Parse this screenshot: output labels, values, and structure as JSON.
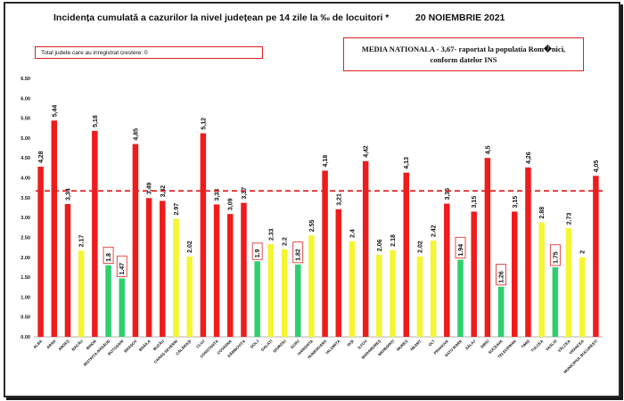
{
  "header": {
    "title": "Incidența cumulată a cazurilor la nivel județean pe 14 zile la ‰ de locuitori *",
    "date": "20 NOIEMBRIE 2021",
    "note_left": "Total judete care au inregistrat crestere: 0",
    "note_right_line1": "MEDIA NATIONALA - 3,67-  raportat la populatia Rom�nici,",
    "note_right_line2": "conform datelor INS"
  },
  "chart_data": {
    "type": "bar",
    "title": "Incidența cumulată a cazurilor la nivel județean pe 14 zile la ‰ de locuitori *",
    "xlabel": "",
    "ylabel": "",
    "ylim": [
      0,
      6.5
    ],
    "yticks": [
      "0.00",
      "0.50",
      "1.00",
      "1.50",
      "2.00",
      "2.50",
      "3.00",
      "3.50",
      "4.00",
      "4.50",
      "5.00",
      "5.50",
      "6.00",
      "6.50"
    ],
    "grid": false,
    "reference_line": 3.67,
    "categories": [
      "ALBA",
      "ARAD",
      "ARGEȘ",
      "BACĂU",
      "BIHOR",
      "BISTRIȚA-NĂSĂUD",
      "BOTOȘANI",
      "BRAȘOV",
      "BRĂILA",
      "BUZĂU",
      "CARAȘ-SEVERIN",
      "CĂLĂRAȘI",
      "CLUJ",
      "CONSTANȚA",
      "COVASNA",
      "DÂMBOVIȚA",
      "DOLJ",
      "GALAȚI",
      "GIURGIU",
      "GORJ",
      "HARGHITA",
      "HUNEDOARA",
      "IALOMIȚA",
      "IAȘI",
      "ILFOV",
      "MARAMUREȘ",
      "MEHEDINȚI",
      "MUREȘ",
      "NEAMȚ",
      "OLT",
      "PRAHOVA",
      "SATU MARE",
      "SĂLAJ",
      "SIBIU",
      "SUCEAVA",
      "TELEORMAN",
      "TIMIȘ",
      "TULCEA",
      "VASLUI",
      "VÂLCEA",
      "VRANCEA",
      "MUNICIPIUL BUCUREȘTI"
    ],
    "values": [
      4.28,
      5.44,
      3.34,
      2.17,
      5.18,
      1.8,
      1.47,
      4.85,
      3.49,
      3.42,
      2.97,
      2.02,
      5.12,
      3.33,
      3.09,
      3.37,
      1.9,
      2.33,
      2.2,
      1.82,
      2.55,
      4.18,
      3.21,
      2.4,
      4.42,
      2.06,
      2.18,
      4.13,
      2.02,
      2.42,
      3.35,
      1.94,
      3.15,
      4.5,
      1.26,
      3.15,
      4.26,
      2.88,
      1.75,
      2.73,
      2,
      4.05
    ],
    "value_labels": [
      "4,28",
      "5,44",
      "3,34",
      "2.17",
      "5,18",
      "1.8",
      "1.47",
      "4,85",
      "3,49",
      "3,42",
      "2.97",
      "2.02",
      "5,12",
      "3,33",
      "3,09",
      "3,37",
      "1.9",
      "2.33",
      "2.2",
      "1.82",
      "2.55",
      "4,18",
      "3,21",
      "2.4",
      "4,42",
      "2.06",
      "2.18",
      "4,13",
      "2.02",
      "2.42",
      "3,35",
      "1.94",
      "3,15",
      "4,5",
      "1.26",
      "3,15",
      "4,26",
      "2.88",
      "1.75",
      "2.73",
      "2",
      "4,05"
    ],
    "bar_colors": [
      "red",
      "red",
      "red",
      "yellow",
      "red",
      "green",
      "green",
      "red",
      "red",
      "red",
      "yellow",
      "yellow",
      "red",
      "red",
      "red",
      "red",
      "green",
      "yellow",
      "yellow",
      "green",
      "yellow",
      "red",
      "red",
      "yellow",
      "red",
      "yellow",
      "yellow",
      "red",
      "yellow",
      "yellow",
      "red",
      "green",
      "red",
      "red",
      "green",
      "red",
      "red",
      "yellow",
      "green",
      "yellow",
      "yellow",
      "red"
    ],
    "boxed_labels": [
      5,
      6,
      16,
      19,
      31,
      34,
      38
    ],
    "colors": {
      "red": "#ee1c1c",
      "yellow": "#f5f531",
      "green": "#2ecf6f",
      "reference": "#dd2222"
    }
  }
}
